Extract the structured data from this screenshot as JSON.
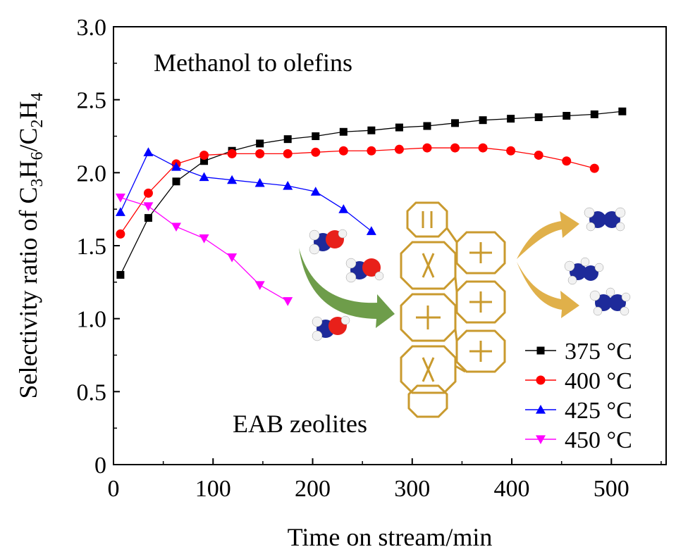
{
  "chart_data": {
    "type": "line",
    "title": "",
    "xlabel": "Time on stream/min",
    "ylabel": {
      "prefix": "Selectivity ratio of C",
      "sub1": "3",
      "mid1": "H",
      "sub2": "6",
      "mid2": "/C",
      "sub3": "2",
      "mid3": "H",
      "sub4": "4"
    },
    "xlim": [
      0,
      555
    ],
    "ylim": [
      0,
      3.0
    ],
    "xticks": [
      0,
      100,
      200,
      300,
      400,
      500
    ],
    "yticks": [
      0,
      0.5,
      1.0,
      1.5,
      2.0,
      2.5,
      3.0
    ],
    "xtick_labels": [
      "0",
      "100",
      "200",
      "300",
      "400",
      "500"
    ],
    "ytick_labels": [
      "0",
      "0.5",
      "1.0",
      "1.5",
      "2.0",
      "2.5",
      "3.0"
    ],
    "annotations": [
      "Methanol to olefins",
      "EAB zeolites"
    ],
    "legend_position": "bottom-right",
    "series": [
      {
        "name": "375 °C",
        "color": "#000000",
        "marker": "square",
        "x": [
          7,
          35,
          63,
          91,
          119,
          147,
          175,
          203,
          231,
          259,
          287,
          315,
          343,
          371,
          399,
          427,
          455,
          483,
          511
        ],
        "y": [
          1.3,
          1.69,
          1.94,
          2.08,
          2.15,
          2.2,
          2.23,
          2.25,
          2.28,
          2.29,
          2.31,
          2.32,
          2.34,
          2.36,
          2.37,
          2.38,
          2.39,
          2.4,
          2.42
        ]
      },
      {
        "name": "400 °C",
        "color": "#ff0000",
        "marker": "circle",
        "x": [
          7,
          35,
          63,
          91,
          119,
          147,
          175,
          203,
          231,
          259,
          287,
          315,
          343,
          371,
          399,
          427,
          455,
          483
        ],
        "y": [
          1.58,
          1.86,
          2.06,
          2.12,
          2.13,
          2.13,
          2.13,
          2.14,
          2.15,
          2.15,
          2.16,
          2.17,
          2.17,
          2.17,
          2.15,
          2.12,
          2.08,
          2.03
        ]
      },
      {
        "name": "425 °C",
        "color": "#0000ff",
        "marker": "triangle-up",
        "x": [
          7,
          35,
          63,
          91,
          119,
          147,
          175,
          203,
          231,
          259
        ],
        "y": [
          1.73,
          2.14,
          2.04,
          1.97,
          1.95,
          1.93,
          1.91,
          1.87,
          1.75,
          1.6
        ]
      },
      {
        "name": "450 °C",
        "color": "#ff00ff",
        "marker": "triangle-down",
        "x": [
          7,
          35,
          63,
          91,
          119,
          147,
          175
        ],
        "y": [
          1.83,
          1.77,
          1.63,
          1.55,
          1.42,
          1.23,
          1.12
        ]
      }
    ]
  }
}
